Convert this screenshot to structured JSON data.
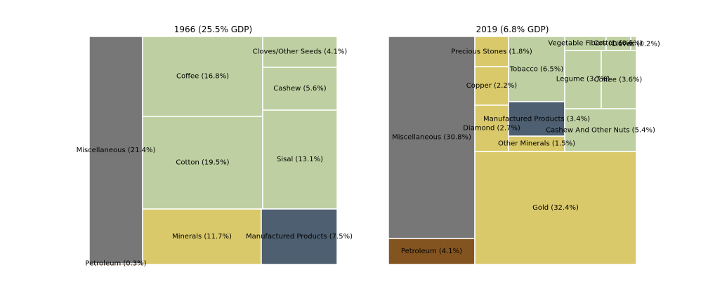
{
  "chart_data": [
    {
      "type": "treemap",
      "title": "1966 (25.5% GDP)",
      "cells": [
        {
          "label": "Miscellaneous (21.4%)",
          "value": 21.4,
          "category": "misc"
        },
        {
          "label": "Petroleum (0.3%)",
          "value": 0.3,
          "category": "petroleum"
        },
        {
          "label": "Coffee (16.8%)",
          "value": 16.8,
          "category": "agri"
        },
        {
          "label": "Cotton (19.5%)",
          "value": 19.5,
          "category": "agri"
        },
        {
          "label": "Minerals (11.7%)",
          "value": 11.7,
          "category": "mineral"
        },
        {
          "label": "Cloves/Other Seeds (4.1%)",
          "value": 4.1,
          "category": "agri"
        },
        {
          "label": "Cashew (5.6%)",
          "value": 5.6,
          "category": "agri"
        },
        {
          "label": "Sisal (13.1%)",
          "value": 13.1,
          "category": "agri"
        },
        {
          "label": "Manufactured Products (7.5%)",
          "value": 7.5,
          "category": "manufactured"
        }
      ]
    },
    {
      "type": "treemap",
      "title": "2019 (6.8% GDP)",
      "cells": [
        {
          "label": "Miscellaneous (30.8%)",
          "value": 30.8,
          "category": "misc"
        },
        {
          "label": "Petroleum (4.1%)",
          "value": 4.1,
          "category": "petroleum"
        },
        {
          "label": "Gold (32.4%)",
          "value": 32.4,
          "category": "mineral"
        },
        {
          "label": "Precious Stones (1.8%)",
          "value": 1.8,
          "category": "mineral"
        },
        {
          "label": "Copper (2.2%)",
          "value": 2.2,
          "category": "mineral"
        },
        {
          "label": "Diamond (2.7%)",
          "value": 2.7,
          "category": "mineral"
        },
        {
          "label": "Other Minerals (1.5%)",
          "value": 1.5,
          "category": "mineral"
        },
        {
          "label": "Tobacco (6.5%)",
          "value": 6.5,
          "category": "agri"
        },
        {
          "label": "Manufactured Products (3.4%)",
          "value": 3.4,
          "category": "manufactured"
        },
        {
          "label": "Vegetable Fibers (1.6%)",
          "value": 1.6,
          "category": "agri"
        },
        {
          "label": "Cotton (0.6%)",
          "value": 0.6,
          "category": "agri"
        },
        {
          "label": "Cloves (0.2%)",
          "value": 0.2,
          "category": "agri"
        },
        {
          "label": "Legume (3.7%)",
          "value": 3.7,
          "category": "agri"
        },
        {
          "label": "Coffee (3.6%)",
          "value": 3.6,
          "category": "agri"
        },
        {
          "label": "Cashew And Other Nuts (5.4%)",
          "value": 5.4,
          "category": "agri"
        }
      ]
    }
  ],
  "colors": {
    "misc": "#777777",
    "petroleum": "#845420",
    "agri": "#bed0a1",
    "mineral": "#d9c96a",
    "manufactured": "#4d5f70"
  }
}
